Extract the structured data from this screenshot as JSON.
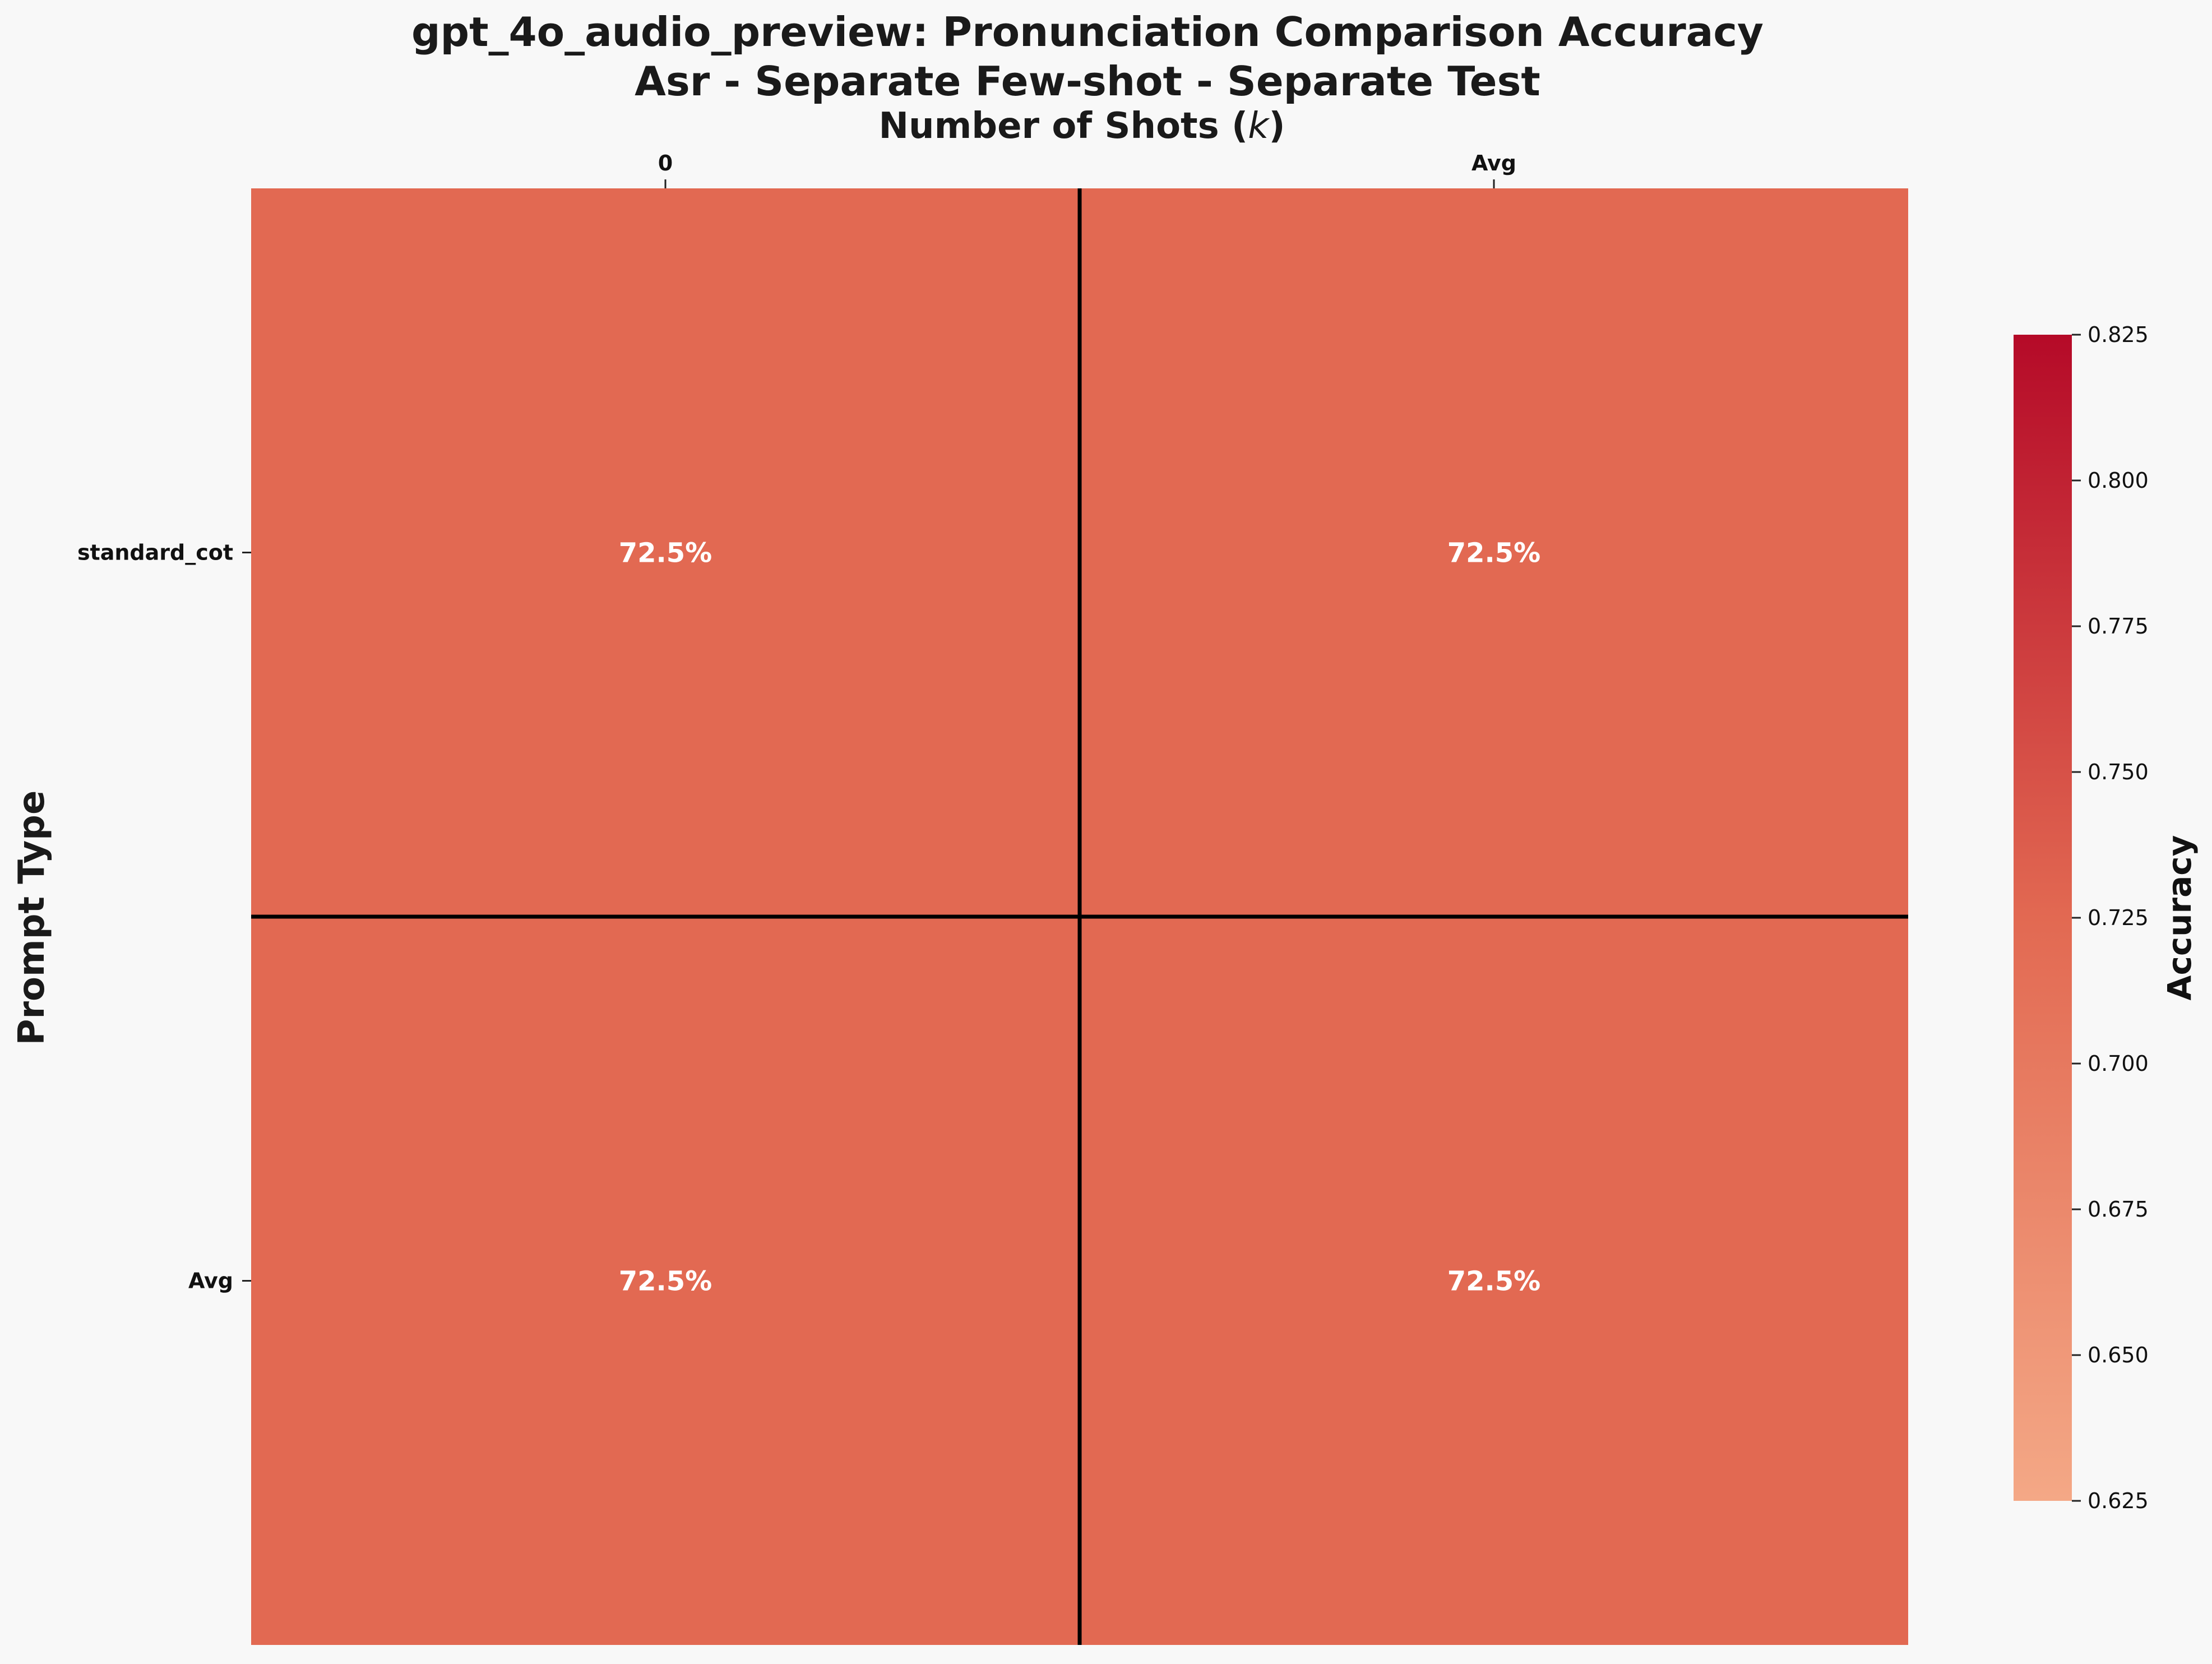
{
  "title_line1": "gpt_4o_audio_preview: Pronunciation Comparison Accuracy",
  "title_line2": "Asr - Separate Few-shot - Separate Test",
  "chart_data": {
    "type": "heatmap",
    "xlabel": "Number of Shots (k)",
    "xlabel_parts": {
      "prefix": "Number of Shots (",
      "var": "k",
      "suffix": ")"
    },
    "ylabel": "Prompt Type",
    "x_categories": [
      "0",
      "Avg"
    ],
    "y_categories": [
      "standard_cot",
      "Avg"
    ],
    "values": [
      [
        0.725,
        0.725
      ],
      [
        0.725,
        0.725
      ]
    ],
    "cell_labels": [
      [
        "72.5%",
        "72.5%"
      ],
      [
        "72.5%",
        "72.5%"
      ]
    ],
    "colorbar": {
      "label": "Accuracy",
      "range": [
        0.625,
        0.825
      ],
      "ticks": [
        "0.625",
        "0.650",
        "0.675",
        "0.700",
        "0.725",
        "0.750",
        "0.775",
        "0.800",
        "0.825"
      ],
      "colormap": [
        "#f4a886",
        "#e26952",
        "#b50a28"
      ]
    },
    "grid_line_color": "#000000",
    "x_axis_position": "top"
  }
}
